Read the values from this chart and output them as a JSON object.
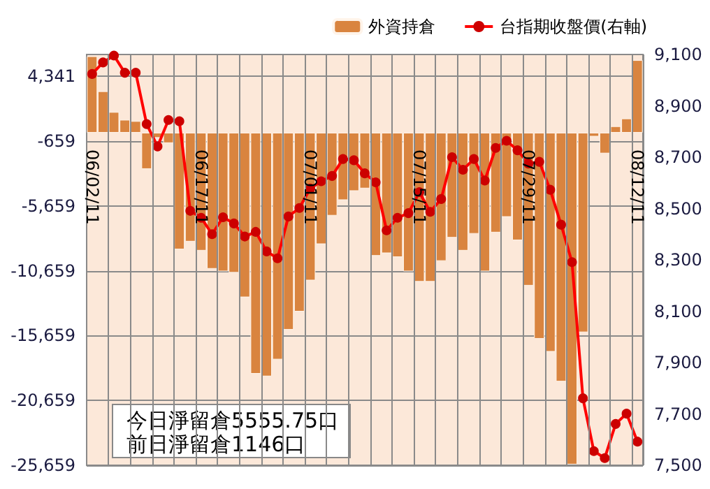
{
  "chart_data": {
    "type": "bar",
    "categories": [
      "06/02/11",
      null,
      null,
      null,
      null,
      null,
      null,
      null,
      null,
      null,
      "06/17/11",
      null,
      null,
      null,
      null,
      null,
      null,
      null,
      null,
      null,
      "07/01/11",
      null,
      null,
      null,
      null,
      null,
      null,
      null,
      null,
      null,
      "07/15/11",
      null,
      null,
      null,
      null,
      null,
      null,
      null,
      null,
      null,
      "07/29/11",
      null,
      null,
      null,
      null,
      null,
      null,
      null,
      null,
      null,
      "08/12/11"
    ],
    "series": [
      {
        "name": "外資持倉",
        "color": "#d9843f",
        "values": [
          5900,
          3200,
          1600,
          1000,
          900,
          -2800,
          -400,
          -800,
          -9000,
          -8400,
          -9100,
          -10500,
          -10700,
          -10800,
          -12700,
          -18600,
          -18800,
          -17500,
          -15200,
          -13800,
          -11400,
          -8600,
          -6400,
          -5200,
          -4500,
          -4300,
          -9500,
          -9300,
          -9600,
          -10700,
          -11500,
          -11500,
          -9900,
          -8100,
          -9100,
          -7800,
          -10700,
          -7700,
          -6500,
          -8300,
          -11800,
          -15900,
          -16900,
          -19200,
          -25600,
          -15400,
          -300,
          -1600,
          500,
          1100,
          5600
        ]
      },
      {
        "name": "台指期收盤價(右軸)",
        "type": "line",
        "axis": "y2",
        "color": "#ff0000",
        "values": [
          9024,
          9069,
          9096,
          9029,
          9029,
          8829,
          8742,
          8845,
          8840,
          8491,
          8464,
          8400,
          8466,
          8442,
          8391,
          8409,
          8333,
          8306,
          8469,
          8502,
          8578,
          8606,
          8627,
          8693,
          8688,
          8637,
          8602,
          8415,
          8464,
          8482,
          8564,
          8487,
          8537,
          8700,
          8651,
          8693,
          8609,
          8736,
          8764,
          8727,
          8675,
          8682,
          8573,
          8437,
          8291,
          7761,
          7555,
          7528,
          7661,
          7701,
          7592
        ]
      }
    ],
    "ylim": [
      -25659,
      6036
    ],
    "yticks": [
      {
        "value": -25659,
        "label": "-25,659"
      },
      {
        "value": -20659,
        "label": "-20,659"
      },
      {
        "value": -15659,
        "label": "-15,659"
      },
      {
        "value": -10659,
        "label": "-10,659"
      },
      {
        "value": -5659,
        "label": "-5,659"
      },
      -659,
      {
        "value": 4341,
        "label": "4,341"
      }
    ],
    "y2lim": [
      7500,
      9100
    ],
    "y2ticks": [
      {
        "value": 7500,
        "label": "7,500"
      },
      {
        "value": 7700,
        "label": "7,700"
      },
      {
        "value": 7900,
        "label": "7,900"
      },
      {
        "value": 8100,
        "label": "8,100"
      },
      {
        "value": 8300,
        "label": "8,300"
      },
      {
        "value": 8500,
        "label": "8,500"
      },
      {
        "value": 8700,
        "label": "8,700"
      },
      {
        "value": 8900,
        "label": "8,900"
      },
      {
        "value": 9100,
        "label": "9,100"
      }
    ],
    "annotations": [
      "今日淨留倉5555.75口",
      "前日淨留倉1146口"
    ],
    "grid": true,
    "legend": "top",
    "marker": "circle",
    "line_style": "solid"
  }
}
